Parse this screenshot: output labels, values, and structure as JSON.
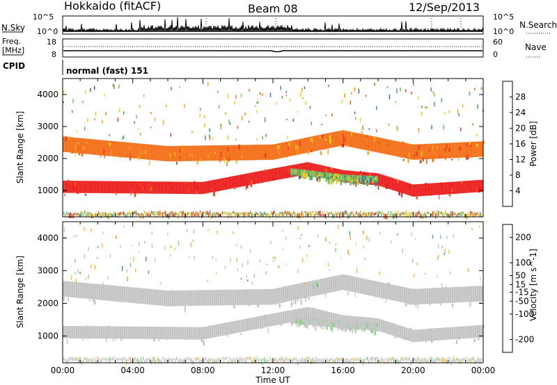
{
  "header": {
    "title": "Hokkaido (fitACF)",
    "beam": "Beam 08",
    "date": "12/Sep/2013"
  },
  "status_panel": {
    "nsky_label": "N.Sky",
    "nsky_ticks": [
      "10^5",
      "10^0"
    ],
    "nsearch_label": "N.Search",
    "freq_label": "Freq.",
    "freq_unit": "[MHz]",
    "freq_ticks": [
      18,
      8
    ],
    "nave_label": "Nave",
    "nave_ticks": [
      60,
      0
    ],
    "cpid_label": "CPID",
    "cpid_value": "normal (fast) 151"
  },
  "colors": {
    "power": [
      "#0a14f0",
      "#2f55a8",
      "#3f8f5a",
      "#5fc25a",
      "#f5c400",
      "#f59a00",
      "#f56000",
      "#f03000",
      "#ea0a0a"
    ],
    "velocity": [
      "#ea0a0a",
      "#f04500",
      "#f58a00",
      "#f5b33a",
      "#c0c0c0",
      "#c0c0c0",
      "#7ed07e",
      "#3fa055",
      "#2f6aa0",
      "#1a28b0"
    ]
  },
  "chart_data": [
    {
      "type": "heatmap",
      "name": "power",
      "ylabel": "Slant Range [km]",
      "xlabel": "",
      "xlim": [
        0,
        24
      ],
      "ylim": [
        180,
        4500
      ],
      "x_ticks": [
        0,
        4,
        8,
        12,
        16,
        20,
        24
      ],
      "y_ticks": [
        1000,
        2000,
        3000,
        4000
      ],
      "colorbar": {
        "label": "Power [dB]",
        "range": [
          0,
          32
        ],
        "ticks": [
          4,
          8,
          12,
          16,
          20,
          24,
          28
        ]
      },
      "echo_bands": [
        {
          "center_km": [
            [
              0,
              1120
            ],
            [
              8,
              1080
            ],
            [
              12,
              1500
            ],
            [
              14,
              1700
            ],
            [
              16,
              1450
            ],
            [
              18,
              1350
            ],
            [
              20,
              1000
            ],
            [
              24,
              1150
            ]
          ],
          "width_km": 380,
          "power_db": 30
        },
        {
          "center_km": [
            [
              0,
              2450
            ],
            [
              6,
              2150
            ],
            [
              12,
              2200
            ],
            [
              16,
              2650
            ],
            [
              20,
              2200
            ],
            [
              24,
              2300
            ]
          ],
          "width_km": 480,
          "power_db": 22
        },
        {
          "center_km": [
            [
              13,
              1600
            ],
            [
              16,
              1400
            ],
            [
              18,
              1350
            ]
          ],
          "width_km": 200,
          "power_db": 12
        }
      ]
    },
    {
      "type": "heatmap",
      "name": "velocity",
      "ylabel": "Slant Range [km]",
      "xlabel": "Time UT",
      "xlim": [
        0,
        24
      ],
      "ylim": [
        180,
        4500
      ],
      "x_ticks": [
        0,
        4,
        8,
        12,
        16,
        20,
        24
      ],
      "x_tick_labels": [
        "00:00",
        "04:00",
        "08:00",
        "12:00",
        "16:00",
        "20:00",
        "00:00"
      ],
      "y_ticks": [
        1000,
        2000,
        3000,
        4000
      ],
      "colorbar": {
        "label": "Velocity [m s^-1]",
        "range": [
          -250,
          250
        ],
        "ticks": [
          -200,
          -100,
          -50,
          -15,
          15,
          50,
          100,
          200
        ]
      },
      "echo_bands": [
        {
          "center_km": [
            [
              0,
              1120
            ],
            [
              8,
              1080
            ],
            [
              12,
              1500
            ],
            [
              14,
              1700
            ],
            [
              16,
              1450
            ],
            [
              18,
              1350
            ],
            [
              20,
              1000
            ],
            [
              24,
              1150
            ]
          ],
          "width_km": 380,
          "velocity_ms": 0
        },
        {
          "center_km": [
            [
              0,
              2450
            ],
            [
              6,
              2150
            ],
            [
              12,
              2200
            ],
            [
              16,
              2650
            ],
            [
              20,
              2200
            ],
            [
              24,
              2300
            ]
          ],
          "width_km": 480,
          "velocity_ms": 0
        },
        {
          "center_km": [
            [
              13,
              1500
            ],
            [
              16,
              1350
            ],
            [
              18,
              1300
            ]
          ],
          "width_km": 220,
          "velocity_ms": 30
        }
      ]
    }
  ]
}
